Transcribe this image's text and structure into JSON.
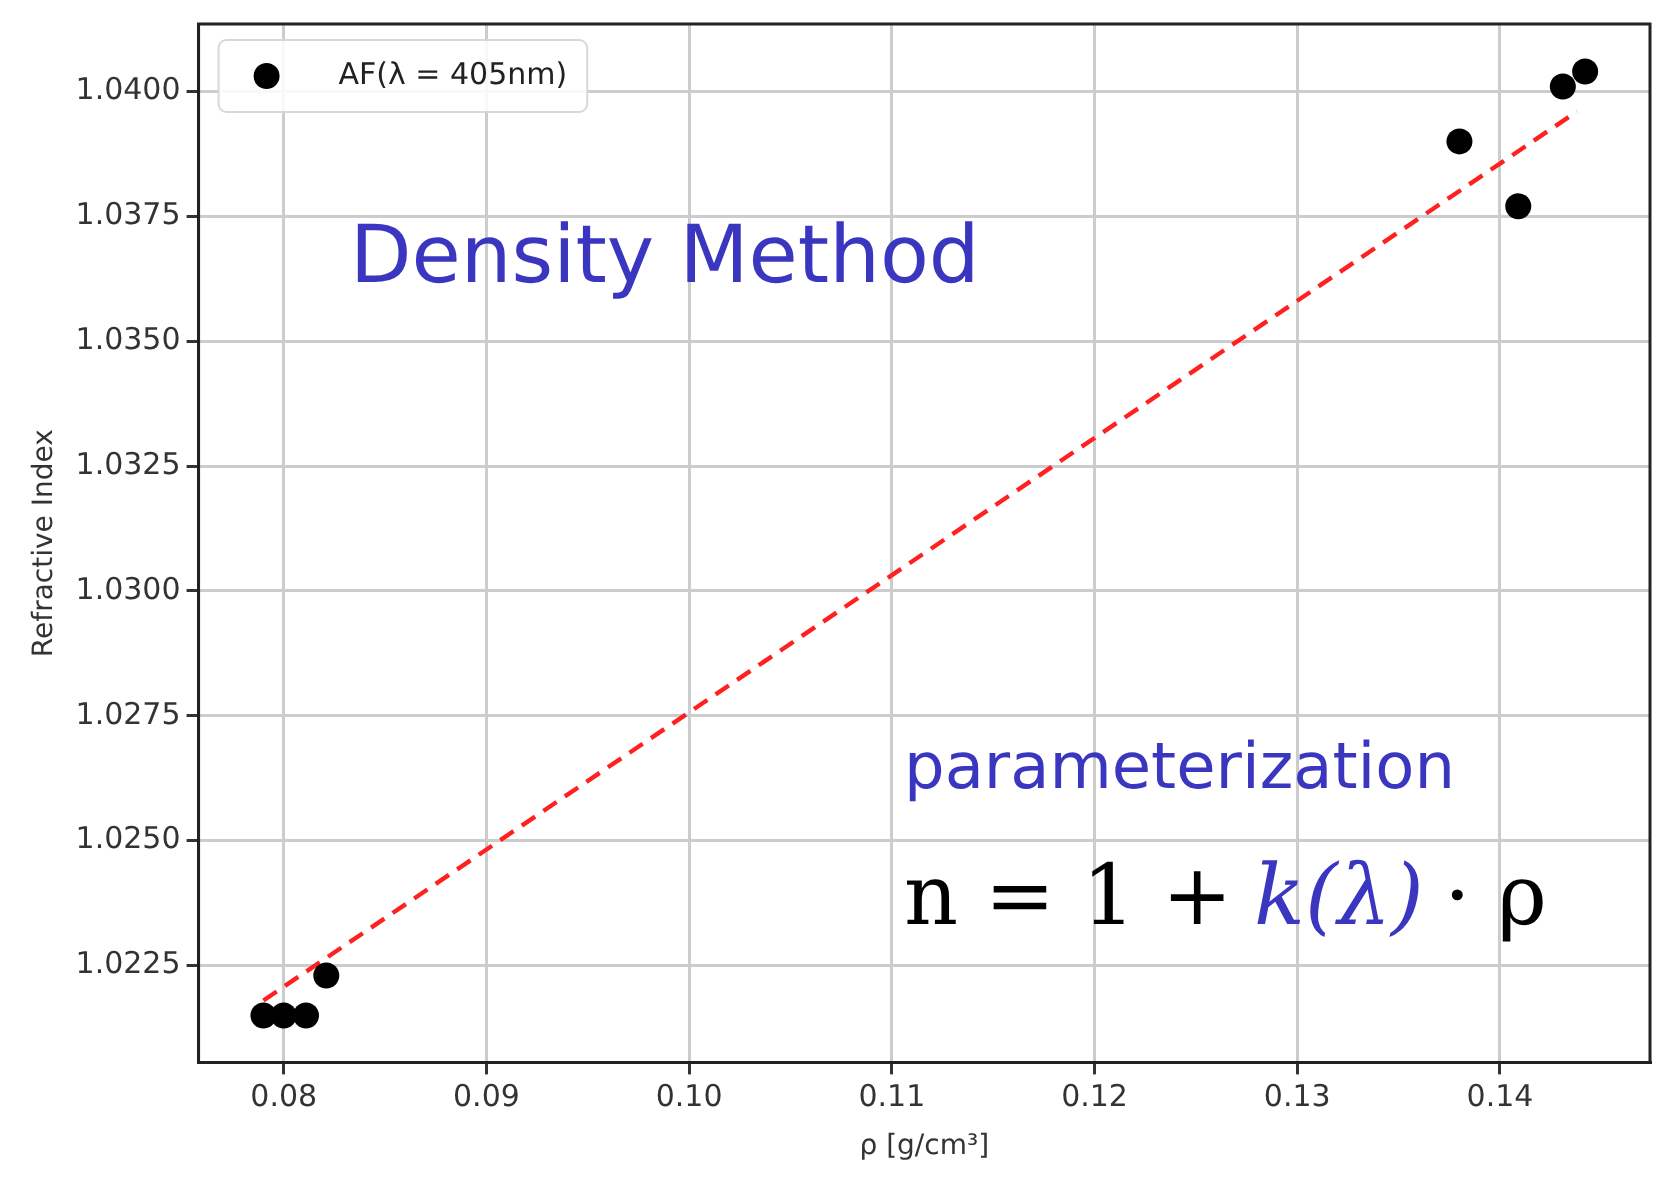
{
  "chart_data": {
    "type": "scatter",
    "xlabel": "ρ [g/cm³]",
    "ylabel": "Refractive Index",
    "xlim": [
      0.0758,
      0.1474
    ],
    "ylim": [
      1.02056,
      1.04135
    ],
    "xticks": [
      0.08,
      0.09,
      {
        "value": 0.1,
        "label": "0.10"
      },
      0.11,
      0.12,
      0.13,
      0.14
    ],
    "yticks": [
      {
        "value": 1.0225,
        "label": "1.0225"
      },
      {
        "value": 1.025,
        "label": "1.0250"
      },
      {
        "value": 1.0275,
        "label": "1.0275"
      },
      {
        "value": 1.03,
        "label": "1.0300"
      },
      {
        "value": 1.0325,
        "label": "1.0325"
      },
      {
        "value": 1.035,
        "label": "1.0350"
      },
      {
        "value": 1.0375,
        "label": "1.0375"
      },
      {
        "value": 1.04,
        "label": "1.0400"
      }
    ],
    "grid": true,
    "legend": "top left",
    "series": [
      {
        "name": "AF(λ = 405nm)",
        "type": "scatter",
        "color": "#000000",
        "marker": "circle",
        "x": [
          0.079,
          0.08,
          0.0811,
          0.0821,
          0.138,
          0.1409,
          0.1431,
          0.1442
        ],
        "values": [
          1.0215,
          1.0215,
          1.0215,
          1.0223,
          1.039,
          1.0377,
          1.0401,
          1.0404
        ]
      },
      {
        "type": "line",
        "color": "#ff2020",
        "marker": "none",
        "line_style": "dashed",
        "x": [
          0.079,
          0.1438
        ],
        "values": [
          1.0218,
          1.0396
        ]
      }
    ],
    "annotations": [
      "Density Method",
      "parameterization",
      "n = 1 +",
      "k(λ)",
      "· ρ"
    ]
  }
}
